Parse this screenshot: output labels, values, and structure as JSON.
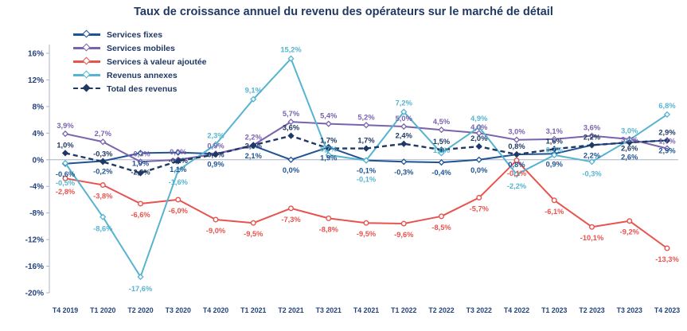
{
  "chart_data": {
    "type": "line",
    "title": "Taux de croissance annuel du revenu des opérateurs sur le marché de détail",
    "xlabel": "",
    "ylabel": "",
    "ylim": [
      -20,
      16
    ],
    "grid": false,
    "legend_position": "top-left",
    "y_ticks": [
      "16%",
      "12%",
      "8%",
      "4%",
      "0%",
      "-4%",
      "-8%",
      "-12%",
      "-16%",
      "-20%"
    ],
    "categories": [
      "T4 2019",
      "T1 2020",
      "T2 2020",
      "T3 2020",
      "T4 2020",
      "T1 2021",
      "T2 2021",
      "T3 2021",
      "T4 2021",
      "T1 2022",
      "T2 2022",
      "T3 2022",
      "T4 2022",
      "T1 2023",
      "T2 2023",
      "T3 2023",
      "T4 2023"
    ],
    "series": [
      {
        "name": "Services fixes",
        "color": "#1f5394",
        "dash": "solid",
        "marker": "diamond",
        "values": [
          -0.6,
          -0.2,
          1.0,
          1.1,
          0.9,
          2.1,
          0.0,
          1.9,
          -0.1,
          -0.3,
          -0.4,
          0.0,
          0.8,
          0.9,
          2.2,
          2.6,
          2.9
        ]
      },
      {
        "name": "Services mobiles",
        "color": "#7a63ae",
        "dash": "solid",
        "marker": "diamond",
        "values": [
          3.9,
          2.7,
          -0.3,
          0.0,
          0.9,
          2.2,
          5.7,
          5.4,
          5.2,
          5.0,
          4.5,
          4.0,
          3.0,
          3.1,
          3.6,
          3.1,
          1.7
        ]
      },
      {
        "name": "Services à valeur ajoutée",
        "color": "#e8534e",
        "dash": "solid",
        "marker": "circle",
        "values": [
          -2.8,
          -3.8,
          -6.6,
          -6.0,
          -9.0,
          -9.5,
          -7.3,
          -8.8,
          -9.5,
          -9.6,
          -8.5,
          -5.7,
          -0.1,
          -6.1,
          -10.1,
          -9.2,
          -13.3
        ]
      },
      {
        "name": "Revenus annexes",
        "color": "#56b4d0",
        "dash": "solid",
        "marker": "diamond",
        "values": [
          -0.5,
          -8.6,
          -17.6,
          -1.6,
          2.3,
          9.1,
          15.2,
          0.7,
          -0.1,
          7.2,
          1.0,
          4.9,
          -2.2,
          0.7,
          -0.3,
          3.0,
          6.8
        ]
      },
      {
        "name": "Total des revenus",
        "color": "#1F3864",
        "dash": "dashed",
        "marker": "diamond",
        "values": [
          1.0,
          -0.3,
          -2.0,
          -0.2,
          0.8,
          2.2,
          3.6,
          1.7,
          1.7,
          2.4,
          1.5,
          2.0,
          0.8,
          1.6,
          2.2,
          2.6,
          2.9
        ]
      }
    ],
    "colors": {
      "title_text": "#1F3864",
      "tick_text": "#24437C",
      "axis_line": "#aab4c2"
    }
  }
}
